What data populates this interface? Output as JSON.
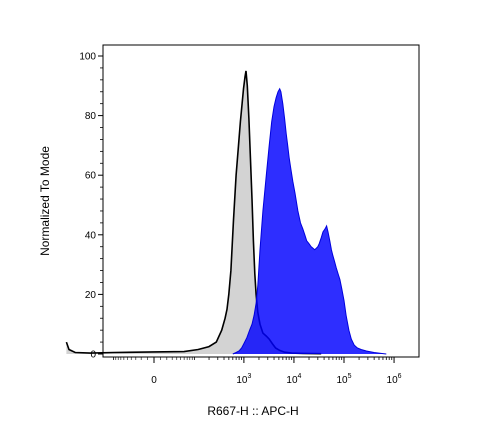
{
  "chart_data": {
    "type": "area",
    "title": "",
    "xlabel": "R667-H :: APC-H",
    "ylabel": "Normalized To Mode",
    "x_scale": "logicle",
    "ylim": [
      0,
      100
    ],
    "y_ticks": [
      "0",
      "20",
      "40",
      "60",
      "80",
      "100"
    ],
    "x_tick_labels": [
      {
        "value": 0,
        "base": "0",
        "exp": ""
      },
      {
        "value": 1000,
        "base": "10",
        "exp": "3"
      },
      {
        "value": 10000,
        "base": "10",
        "exp": "4"
      },
      {
        "value": 100000,
        "base": "10",
        "exp": "5"
      },
      {
        "value": 1000000,
        "base": "10",
        "exp": "6"
      }
    ],
    "grid": false,
    "legend": "none",
    "series": [
      {
        "fill": "#d3d3d3",
        "stroke": "#000000",
        "points": [
          [
            -900,
            4
          ],
          [
            -800,
            1.5
          ],
          [
            -600,
            0.5
          ],
          [
            -300,
            0.3
          ],
          [
            -100,
            0.5
          ],
          [
            0,
            0.7
          ],
          [
            60,
            0.8
          ],
          [
            120,
            1.5
          ],
          [
            200,
            2.5
          ],
          [
            280,
            4
          ],
          [
            360,
            8
          ],
          [
            420,
            12
          ],
          [
            460,
            15
          ],
          [
            500,
            20
          ],
          [
            550,
            28
          ],
          [
            620,
            45
          ],
          [
            700,
            60
          ],
          [
            780,
            70
          ],
          [
            850,
            78
          ],
          [
            920,
            84
          ],
          [
            980,
            89
          ],
          [
            1050,
            93
          ],
          [
            1100,
            95
          ],
          [
            1170,
            90
          ],
          [
            1260,
            79
          ],
          [
            1350,
            66
          ],
          [
            1450,
            52
          ],
          [
            1550,
            38
          ],
          [
            1650,
            27
          ],
          [
            1750,
            20
          ],
          [
            1900,
            14
          ],
          [
            2100,
            10
          ],
          [
            2400,
            7
          ],
          [
            2800,
            6
          ],
          [
            3200,
            5
          ],
          [
            3700,
            3.5
          ],
          [
            4300,
            2
          ],
          [
            5200,
            1.2
          ],
          [
            6500,
            0.6
          ],
          [
            9000,
            0.3
          ],
          [
            15000,
            0.2
          ],
          [
            35000,
            0.1
          ]
        ]
      },
      {
        "fill": "#0000ff",
        "fill_opacity": 0.82,
        "stroke": "#0000dd",
        "points": [
          [
            600,
            0
          ],
          [
            700,
            0.5
          ],
          [
            800,
            1
          ],
          [
            900,
            2
          ],
          [
            1000,
            3.5
          ],
          [
            1150,
            5.5
          ],
          [
            1300,
            8
          ],
          [
            1450,
            10
          ],
          [
            1600,
            13
          ],
          [
            1750,
            17
          ],
          [
            1900,
            23
          ],
          [
            2100,
            35
          ],
          [
            2400,
            48
          ],
          [
            2800,
            60
          ],
          [
            3200,
            70
          ],
          [
            3600,
            78
          ],
          [
            4000,
            83
          ],
          [
            4400,
            86
          ],
          [
            4800,
            88
          ],
          [
            5200,
            89
          ],
          [
            5500,
            88
          ],
          [
            6000,
            84
          ],
          [
            6500,
            79
          ],
          [
            7000,
            74
          ],
          [
            7500,
            70
          ],
          [
            8000,
            66
          ],
          [
            8700,
            62
          ],
          [
            9500,
            58
          ],
          [
            10500,
            54
          ],
          [
            12000,
            48
          ],
          [
            13500,
            44
          ],
          [
            15000,
            42
          ],
          [
            16500,
            40
          ],
          [
            18000,
            38
          ],
          [
            20000,
            37
          ],
          [
            22000,
            36
          ],
          [
            24000,
            35.5
          ],
          [
            26000,
            35
          ],
          [
            28000,
            35.5
          ],
          [
            30000,
            36
          ],
          [
            32000,
            37
          ],
          [
            35000,
            39
          ],
          [
            38000,
            41
          ],
          [
            42000,
            42
          ],
          [
            45000,
            43
          ],
          [
            48000,
            41
          ],
          [
            52000,
            38
          ],
          [
            56000,
            35
          ],
          [
            60000,
            33
          ],
          [
            65000,
            31
          ],
          [
            70000,
            29
          ],
          [
            76000,
            27
          ],
          [
            83000,
            25
          ],
          [
            90000,
            22
          ],
          [
            100000,
            18
          ],
          [
            110000,
            13
          ],
          [
            125000,
            8
          ],
          [
            140000,
            5
          ],
          [
            160000,
            3
          ],
          [
            185000,
            2
          ],
          [
            220000,
            1.5
          ],
          [
            280000,
            1
          ],
          [
            400000,
            0.5
          ],
          [
            700000,
            0
          ]
        ]
      }
    ]
  }
}
